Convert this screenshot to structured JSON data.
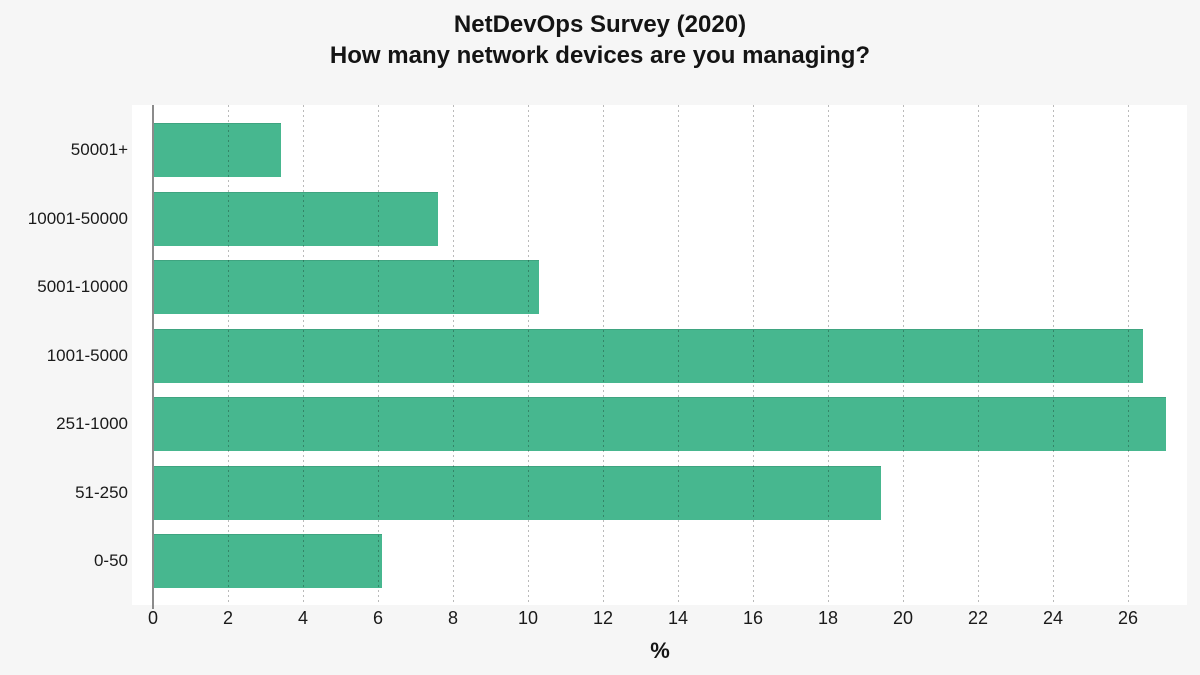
{
  "title": {
    "line1": "NetDevOps Survey (2020)",
    "line2": "How many network devices are you managing?"
  },
  "chart_data": {
    "type": "bar",
    "orientation": "horizontal",
    "title": "NetDevOps Survey (2020) — How many network devices are you managing?",
    "categories": [
      "50001+",
      "10001-50000",
      "5001-10000",
      "1001-5000",
      "251-1000",
      "51-250",
      "0-50"
    ],
    "values": [
      3.4,
      7.6,
      10.3,
      26.4,
      27.0,
      19.4,
      6.1
    ],
    "xlabel": "%",
    "ylabel": "",
    "xlim": [
      0,
      27.6
    ],
    "x_ticks": [
      0,
      2,
      4,
      6,
      8,
      10,
      12,
      14,
      16,
      18,
      20,
      22,
      24,
      26
    ],
    "grid": "vertical-dashed-over-bars",
    "legend": "none",
    "bar_color": "#47b78f",
    "plot_background": "#ffffff",
    "figure_background": "#f6f6f6"
  }
}
